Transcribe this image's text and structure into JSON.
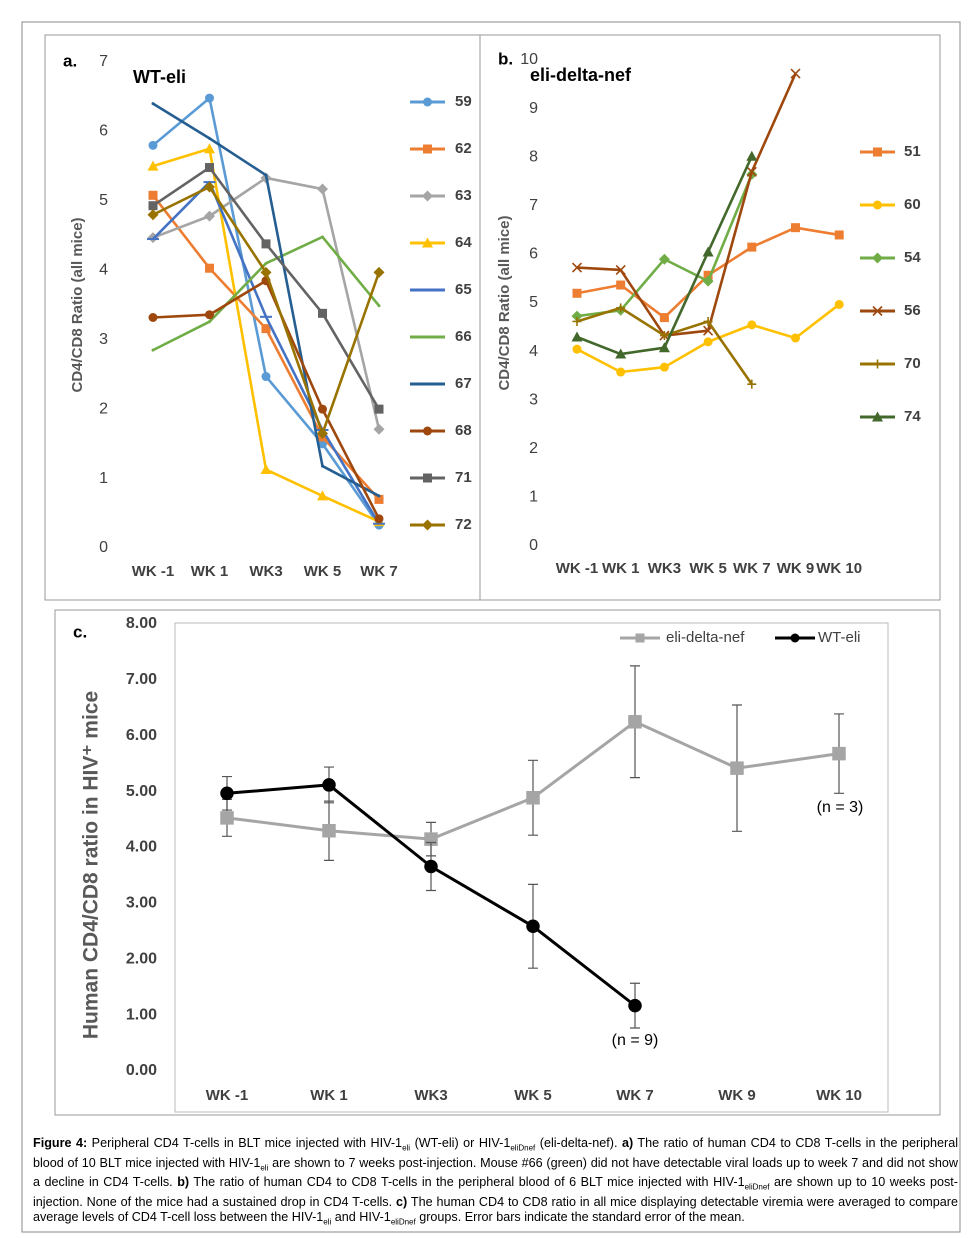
{
  "chart_data": [
    {
      "type": "line",
      "panel": "a.",
      "title": "WT-eli",
      "y_label": "CD4/CD8 Ratio (all mice)",
      "categories": [
        "WK -1",
        "WK 1",
        "WK3",
        "WK 5",
        "WK 7"
      ],
      "ylim": [
        0,
        7
      ],
      "yticks": [
        0,
        1,
        2,
        3,
        4,
        5,
        6,
        7
      ],
      "legend": "right",
      "series": [
        {
          "name": "59",
          "color": "#5b9bd5",
          "marker": "circle",
          "values": [
            5.8,
            6.48,
            2.47,
            1.5,
            0.33
          ]
        },
        {
          "name": "62",
          "color": "#ed7d31",
          "marker": "square",
          "values": [
            5.08,
            4.03,
            3.16,
            1.6,
            0.7
          ]
        },
        {
          "name": "63",
          "color": "#a5a5a5",
          "marker": "diamond",
          "values": [
            4.47,
            4.78,
            5.33,
            5.17,
            1.71
          ]
        },
        {
          "name": "64",
          "color": "#ffc000",
          "marker": "triangle",
          "values": [
            5.5,
            5.75,
            1.13,
            0.75,
            0.38
          ]
        },
        {
          "name": "65",
          "color": "#4472c4",
          "marker": "dash",
          "values": [
            4.45,
            5.27,
            3.33,
            1.7,
            0.35
          ]
        },
        {
          "name": "66",
          "color": "#70ad47",
          "marker": "none",
          "values": [
            2.85,
            3.26,
            4.1,
            4.48,
            3.49
          ]
        },
        {
          "name": "67",
          "color": "#255e91",
          "marker": "none",
          "values": [
            6.4,
            5.9,
            5.37,
            1.18,
            0.75
          ]
        },
        {
          "name": "68",
          "color": "#9e480e",
          "marker": "circle",
          "values": [
            3.32,
            3.36,
            3.85,
            2.0,
            0.42
          ]
        },
        {
          "name": "71",
          "color": "#636363",
          "marker": "square",
          "values": [
            4.93,
            5.48,
            4.38,
            3.38,
            2.0
          ]
        },
        {
          "name": "72",
          "color": "#997300",
          "marker": "diamond",
          "values": [
            4.8,
            5.2,
            3.97,
            1.65,
            3.97
          ]
        }
      ]
    },
    {
      "type": "line",
      "panel": "b.",
      "title": "eli-delta-nef",
      "y_label": "CD4/CD8 Ratio (all mice)",
      "categories": [
        "WK -1",
        "WK 1",
        "WK3",
        "WK 5",
        "WK 7",
        "WK 9",
        "WK 10"
      ],
      "ylim": [
        0,
        10
      ],
      "yticks": [
        0,
        1,
        2,
        3,
        4,
        5,
        6,
        7,
        8,
        9,
        10
      ],
      "legend": "right",
      "series": [
        {
          "name": "51",
          "color": "#ed7d31",
          "marker": "square",
          "values": [
            5.2,
            5.37,
            4.7,
            5.57,
            6.15,
            6.55,
            6.4
          ]
        },
        {
          "name": "60",
          "color": "#ffc000",
          "marker": "circle",
          "values": [
            4.05,
            3.58,
            3.68,
            4.2,
            4.55,
            4.28,
            4.97
          ]
        },
        {
          "name": "54",
          "color": "#70ad47",
          "marker": "diamond",
          "values": [
            4.73,
            4.85,
            5.9,
            5.45,
            7.65,
            null,
            null
          ]
        },
        {
          "name": "56",
          "color": "#9e480e",
          "marker": "x",
          "values": [
            5.73,
            5.68,
            4.33,
            4.43,
            7.7,
            9.72,
            null
          ]
        },
        {
          "name": "70",
          "color": "#997300",
          "marker": "plus",
          "values": [
            4.62,
            4.9,
            4.33,
            4.62,
            3.33,
            null,
            null
          ]
        },
        {
          "name": "74",
          "color": "#43682b",
          "marker": "triangle",
          "values": [
            4.3,
            3.95,
            4.08,
            6.05,
            8.02,
            null,
            null
          ]
        }
      ]
    },
    {
      "type": "line",
      "panel": "c.",
      "y_label": "Human CD4/CD8 ratio in HIV⁺ mice",
      "categories": [
        "WK -1",
        "WK 1",
        "WK3",
        "WK 5",
        "WK 7",
        "WK 9",
        "WK 10"
      ],
      "ylim": [
        0,
        8
      ],
      "yticks": [
        {
          "value": 0,
          "label": "0.00"
        },
        {
          "value": 1,
          "label": "1.00"
        },
        {
          "value": 2,
          "label": "2.00"
        },
        {
          "value": 3,
          "label": "3.00"
        },
        {
          "value": 4,
          "label": "4.00"
        },
        {
          "value": 5,
          "label": "5.00"
        },
        {
          "value": 6,
          "label": "6.00"
        },
        {
          "value": 7,
          "label": "7.00"
        },
        {
          "value": 8,
          "label": "8.00"
        }
      ],
      "legend": "top-right",
      "series": [
        {
          "name": "eli-delta-nef",
          "color": "#a5a5a5",
          "marker": "square",
          "values": [
            4.53,
            4.3,
            4.15,
            4.89,
            6.25,
            5.42,
            5.68
          ],
          "errors": [
            0.33,
            0.53,
            0.3,
            0.67,
            1.0,
            1.13,
            0.71
          ]
        },
        {
          "name": "WT-eli",
          "color": "#000000",
          "marker": "circle",
          "values": [
            4.97,
            5.12,
            3.66,
            2.59,
            1.17,
            null,
            null
          ],
          "errors": [
            0.3,
            0.32,
            0.43,
            0.75,
            0.4,
            null,
            null
          ]
        }
      ],
      "annotations": [
        "(n = 3)",
        "(n = 9)"
      ]
    }
  ],
  "caption": {
    "parts": [
      {
        "bold": "Figure 4:"
      },
      " Peripheral CD4 T-cells in BLT mice injected with HIV-1",
      {
        "sub": "eli"
      },
      " (WT-eli) or HIV-1",
      {
        "sub": "eliDnef"
      },
      " (eli-delta-nef). ",
      {
        "bold": "a)"
      },
      " The ratio of human CD4 to CD8 T-cells in the peripheral blood of 10 BLT mice injected with HIV-1",
      {
        "sub": "eli"
      },
      " are shown to 7 weeks post-injection. Mouse #66 (green) did not have detectable viral loads up to week 7 and did not show a decline in CD4 T-cells. ",
      {
        "bold": "b)"
      },
      " The ratio of human CD4 to CD8 T-cells in the peripheral blood of 6 BLT mice injected with HIV-1",
      {
        "sub": "eliDnef"
      },
      " are shown up to 10 weeks post-injection. None of the mice had a sustained drop in CD4 T-cells. ",
      {
        "bold": "c)"
      },
      " The human CD4 to CD8 ratio in all mice displaying detectable viremia were averaged to compare average levels of CD4 T-cell loss between the HIV-1",
      {
        "sub": "eli"
      },
      " and HIV-1",
      {
        "sub": "eliDnef"
      },
      " groups. Error bars indicate the standard error of the mean."
    ]
  }
}
